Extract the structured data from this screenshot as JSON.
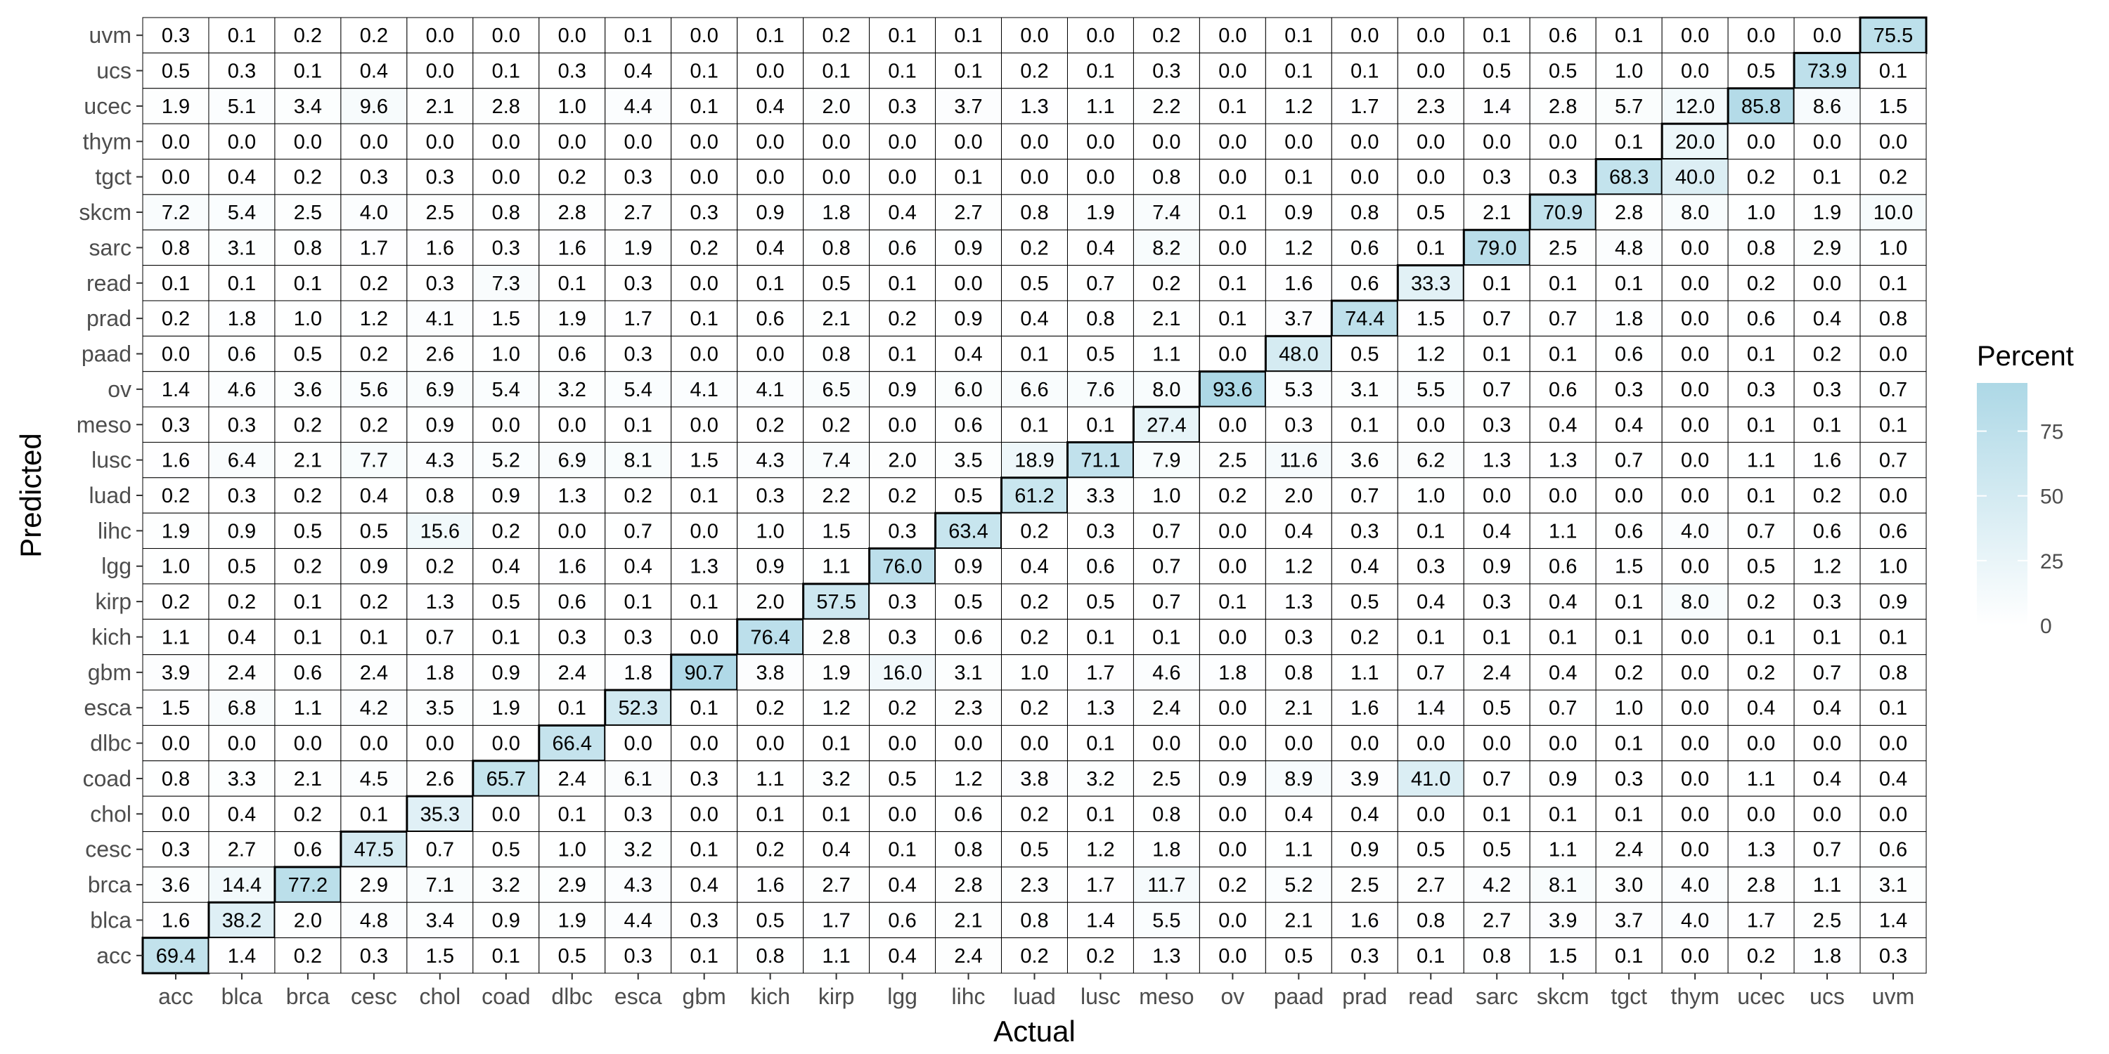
{
  "chart_data": {
    "type": "heatmap",
    "xlabel": "Actual",
    "ylabel": "Predicted",
    "x_categories": [
      "acc",
      "blca",
      "brca",
      "cesc",
      "chol",
      "coad",
      "dlbc",
      "esca",
      "gbm",
      "kich",
      "kirp",
      "lgg",
      "lihc",
      "luad",
      "lusc",
      "meso",
      "ov",
      "paad",
      "prad",
      "read",
      "sarc",
      "skcm",
      "tgct",
      "thym",
      "ucec",
      "ucs",
      "uvm"
    ],
    "y_categories": [
      "uvm",
      "ucs",
      "ucec",
      "thym",
      "tgct",
      "skcm",
      "sarc",
      "read",
      "prad",
      "paad",
      "ov",
      "meso",
      "lusc",
      "luad",
      "lihc",
      "lgg",
      "kirp",
      "kich",
      "gbm",
      "esca",
      "dlbc",
      "coad",
      "chol",
      "cesc",
      "brca",
      "blca",
      "acc"
    ],
    "values": [
      [
        0.3,
        0.1,
        0.2,
        0.2,
        0.0,
        0.0,
        0.0,
        0.1,
        0.0,
        0.1,
        0.2,
        0.1,
        0.1,
        0.0,
        0.0,
        0.2,
        0.0,
        0.1,
        0.0,
        0.0,
        0.1,
        0.6,
        0.1,
        0.0,
        0.0,
        0.0,
        75.5
      ],
      [
        0.5,
        0.3,
        0.1,
        0.4,
        0.0,
        0.1,
        0.3,
        0.4,
        0.1,
        0.0,
        0.1,
        0.1,
        0.1,
        0.2,
        0.1,
        0.3,
        0.0,
        0.1,
        0.1,
        0.0,
        0.5,
        0.5,
        1.0,
        0.0,
        0.5,
        73.9,
        0.1
      ],
      [
        1.9,
        5.1,
        3.4,
        9.6,
        2.1,
        2.8,
        1.0,
        4.4,
        0.1,
        0.4,
        2.0,
        0.3,
        3.7,
        1.3,
        1.1,
        2.2,
        0.1,
        1.2,
        1.7,
        2.3,
        1.4,
        2.8,
        5.7,
        12.0,
        85.8,
        8.6,
        1.5
      ],
      [
        0.0,
        0.0,
        0.0,
        0.0,
        0.0,
        0.0,
        0.0,
        0.0,
        0.0,
        0.0,
        0.0,
        0.0,
        0.0,
        0.0,
        0.0,
        0.0,
        0.0,
        0.0,
        0.0,
        0.0,
        0.0,
        0.0,
        0.1,
        20.0,
        0.0,
        0.0,
        0.0
      ],
      [
        0.0,
        0.4,
        0.2,
        0.3,
        0.3,
        0.0,
        0.2,
        0.3,
        0.0,
        0.0,
        0.0,
        0.0,
        0.1,
        0.0,
        0.0,
        0.8,
        0.0,
        0.1,
        0.0,
        0.0,
        0.3,
        0.3,
        68.3,
        40.0,
        0.2,
        0.1,
        0.2
      ],
      [
        7.2,
        5.4,
        2.5,
        4.0,
        2.5,
        0.8,
        2.8,
        2.7,
        0.3,
        0.9,
        1.8,
        0.4,
        2.7,
        0.8,
        1.9,
        7.4,
        0.1,
        0.9,
        0.8,
        0.5,
        2.1,
        70.9,
        2.8,
        8.0,
        1.0,
        1.9,
        10.0
      ],
      [
        0.8,
        3.1,
        0.8,
        1.7,
        1.6,
        0.3,
        1.6,
        1.9,
        0.2,
        0.4,
        0.8,
        0.6,
        0.9,
        0.2,
        0.4,
        8.2,
        0.0,
        1.2,
        0.6,
        0.1,
        79.0,
        2.5,
        4.8,
        0.0,
        0.8,
        2.9,
        1.0
      ],
      [
        0.1,
        0.1,
        0.1,
        0.2,
        0.3,
        7.3,
        0.1,
        0.3,
        0.0,
        0.1,
        0.5,
        0.1,
        0.0,
        0.5,
        0.7,
        0.2,
        0.1,
        1.6,
        0.6,
        33.3,
        0.1,
        0.1,
        0.1,
        0.0,
        0.2,
        0.0,
        0.1
      ],
      [
        0.2,
        1.8,
        1.0,
        1.2,
        4.1,
        1.5,
        1.9,
        1.7,
        0.1,
        0.6,
        2.1,
        0.2,
        0.9,
        0.4,
        0.8,
        2.1,
        0.1,
        3.7,
        74.4,
        1.5,
        0.7,
        0.7,
        1.8,
        0.0,
        0.6,
        0.4,
        0.8
      ],
      [
        0.0,
        0.6,
        0.5,
        0.2,
        2.6,
        1.0,
        0.6,
        0.3,
        0.0,
        0.0,
        0.8,
        0.1,
        0.4,
        0.1,
        0.5,
        1.1,
        0.0,
        48.0,
        0.5,
        1.2,
        0.1,
        0.1,
        0.6,
        0.0,
        0.1,
        0.2,
        0.0
      ],
      [
        1.4,
        4.6,
        3.6,
        5.6,
        6.9,
        5.4,
        3.2,
        5.4,
        4.1,
        4.1,
        6.5,
        0.9,
        6.0,
        6.6,
        7.6,
        8.0,
        93.6,
        5.3,
        3.1,
        5.5,
        0.7,
        0.6,
        0.3,
        0.0,
        0.3,
        0.3,
        0.7
      ],
      [
        0.3,
        0.3,
        0.2,
        0.2,
        0.9,
        0.0,
        0.0,
        0.1,
        0.0,
        0.2,
        0.2,
        0.0,
        0.6,
        0.1,
        0.1,
        27.4,
        0.0,
        0.3,
        0.1,
        0.0,
        0.3,
        0.4,
        0.4,
        0.0,
        0.1,
        0.1,
        0.1
      ],
      [
        1.6,
        6.4,
        2.1,
        7.7,
        4.3,
        5.2,
        6.9,
        8.1,
        1.5,
        4.3,
        7.4,
        2.0,
        3.5,
        18.9,
        71.1,
        7.9,
        2.5,
        11.6,
        3.6,
        6.2,
        1.3,
        1.3,
        0.7,
        0.0,
        1.1,
        1.6,
        0.7
      ],
      [
        0.2,
        0.3,
        0.2,
        0.4,
        0.8,
        0.9,
        1.3,
        0.2,
        0.1,
        0.3,
        2.2,
        0.2,
        0.5,
        61.2,
        3.3,
        1.0,
        0.2,
        2.0,
        0.7,
        1.0,
        0.0,
        0.0,
        0.0,
        0.0,
        0.1,
        0.2,
        0.0
      ],
      [
        1.9,
        0.9,
        0.5,
        0.5,
        15.6,
        0.2,
        0.0,
        0.7,
        0.0,
        1.0,
        1.5,
        0.3,
        63.4,
        0.2,
        0.3,
        0.7,
        0.0,
        0.4,
        0.3,
        0.1,
        0.4,
        1.1,
        0.6,
        4.0,
        0.7,
        0.6,
        0.6
      ],
      [
        1.0,
        0.5,
        0.2,
        0.9,
        0.2,
        0.4,
        1.6,
        0.4,
        1.3,
        0.9,
        1.1,
        76.0,
        0.9,
        0.4,
        0.6,
        0.7,
        0.0,
        1.2,
        0.4,
        0.3,
        0.9,
        0.6,
        1.5,
        0.0,
        0.5,
        1.2,
        1.0
      ],
      [
        0.2,
        0.2,
        0.1,
        0.2,
        1.3,
        0.5,
        0.6,
        0.1,
        0.1,
        2.0,
        57.5,
        0.3,
        0.5,
        0.2,
        0.5,
        0.7,
        0.1,
        1.3,
        0.5,
        0.4,
        0.3,
        0.4,
        0.1,
        8.0,
        0.2,
        0.3,
        0.9
      ],
      [
        1.1,
        0.4,
        0.1,
        0.1,
        0.7,
        0.1,
        0.3,
        0.3,
        0.0,
        76.4,
        2.8,
        0.3,
        0.6,
        0.2,
        0.1,
        0.1,
        0.0,
        0.3,
        0.2,
        0.1,
        0.1,
        0.1,
        0.1,
        0.0,
        0.1,
        0.1,
        0.1
      ],
      [
        3.9,
        2.4,
        0.6,
        2.4,
        1.8,
        0.9,
        2.4,
        1.8,
        90.7,
        3.8,
        1.9,
        16.0,
        3.1,
        1.0,
        1.7,
        4.6,
        1.8,
        0.8,
        1.1,
        0.7,
        2.4,
        0.4,
        0.2,
        0.0,
        0.2,
        0.7,
        0.8
      ],
      [
        1.5,
        6.8,
        1.1,
        4.2,
        3.5,
        1.9,
        0.1,
        52.3,
        0.1,
        0.2,
        1.2,
        0.2,
        2.3,
        0.2,
        1.3,
        2.4,
        0.0,
        2.1,
        1.6,
        1.4,
        0.5,
        0.7,
        1.0,
        0.0,
        0.4,
        0.4,
        0.1
      ],
      [
        0.0,
        0.0,
        0.0,
        0.0,
        0.0,
        0.0,
        66.4,
        0.0,
        0.0,
        0.0,
        0.1,
        0.0,
        0.0,
        0.0,
        0.1,
        0.0,
        0.0,
        0.0,
        0.0,
        0.0,
        0.0,
        0.0,
        0.1,
        0.0,
        0.0,
        0.0,
        0.0
      ],
      [
        0.8,
        3.3,
        2.1,
        4.5,
        2.6,
        65.7,
        2.4,
        6.1,
        0.3,
        1.1,
        3.2,
        0.5,
        1.2,
        3.8,
        3.2,
        2.5,
        0.9,
        8.9,
        3.9,
        41.0,
        0.7,
        0.9,
        0.3,
        0.0,
        1.1,
        0.4,
        0.4
      ],
      [
        0.0,
        0.4,
        0.2,
        0.1,
        35.3,
        0.0,
        0.1,
        0.3,
        0.0,
        0.1,
        0.1,
        0.0,
        0.6,
        0.2,
        0.1,
        0.8,
        0.0,
        0.4,
        0.4,
        0.0,
        0.1,
        0.1,
        0.1,
        0.0,
        0.0,
        0.0,
        0.0
      ],
      [
        0.3,
        2.7,
        0.6,
        47.5,
        0.7,
        0.5,
        1.0,
        3.2,
        0.1,
        0.2,
        0.4,
        0.1,
        0.8,
        0.5,
        1.2,
        1.8,
        0.0,
        1.1,
        0.9,
        0.5,
        0.5,
        1.1,
        2.4,
        0.0,
        1.3,
        0.7,
        0.6
      ],
      [
        3.6,
        14.4,
        77.2,
        2.9,
        7.1,
        3.2,
        2.9,
        4.3,
        0.4,
        1.6,
        2.7,
        0.4,
        2.8,
        2.3,
        1.7,
        11.7,
        0.2,
        5.2,
        2.5,
        2.7,
        4.2,
        8.1,
        3.0,
        4.0,
        2.8,
        1.1,
        3.1
      ],
      [
        1.6,
        38.2,
        2.0,
        4.8,
        3.4,
        0.9,
        1.9,
        4.4,
        0.3,
        0.5,
        1.7,
        0.6,
        2.1,
        0.8,
        1.4,
        5.5,
        0.0,
        2.1,
        1.6,
        0.8,
        2.7,
        3.9,
        3.7,
        4.0,
        1.7,
        2.5,
        1.4
      ],
      [
        69.4,
        1.4,
        0.2,
        0.3,
        1.5,
        0.1,
        0.5,
        0.3,
        0.1,
        0.8,
        1.1,
        0.4,
        2.4,
        0.2,
        0.2,
        1.3,
        0.0,
        0.5,
        0.3,
        0.1,
        0.8,
        1.5,
        0.1,
        0.0,
        0.2,
        1.8,
        0.3
      ]
    ],
    "value_range": [
      0,
      93.6
    ],
    "color_low": "#ffffff",
    "color_high": "#add8e6",
    "cell_border_color": "#000000",
    "grid_color": "#ebebeb",
    "panel_bg": "#ffffff",
    "grid": true,
    "legend": {
      "title": "Percent",
      "placement": "right",
      "ticks": [
        0,
        25,
        50,
        75
      ]
    },
    "highlight": "diagonal"
  }
}
